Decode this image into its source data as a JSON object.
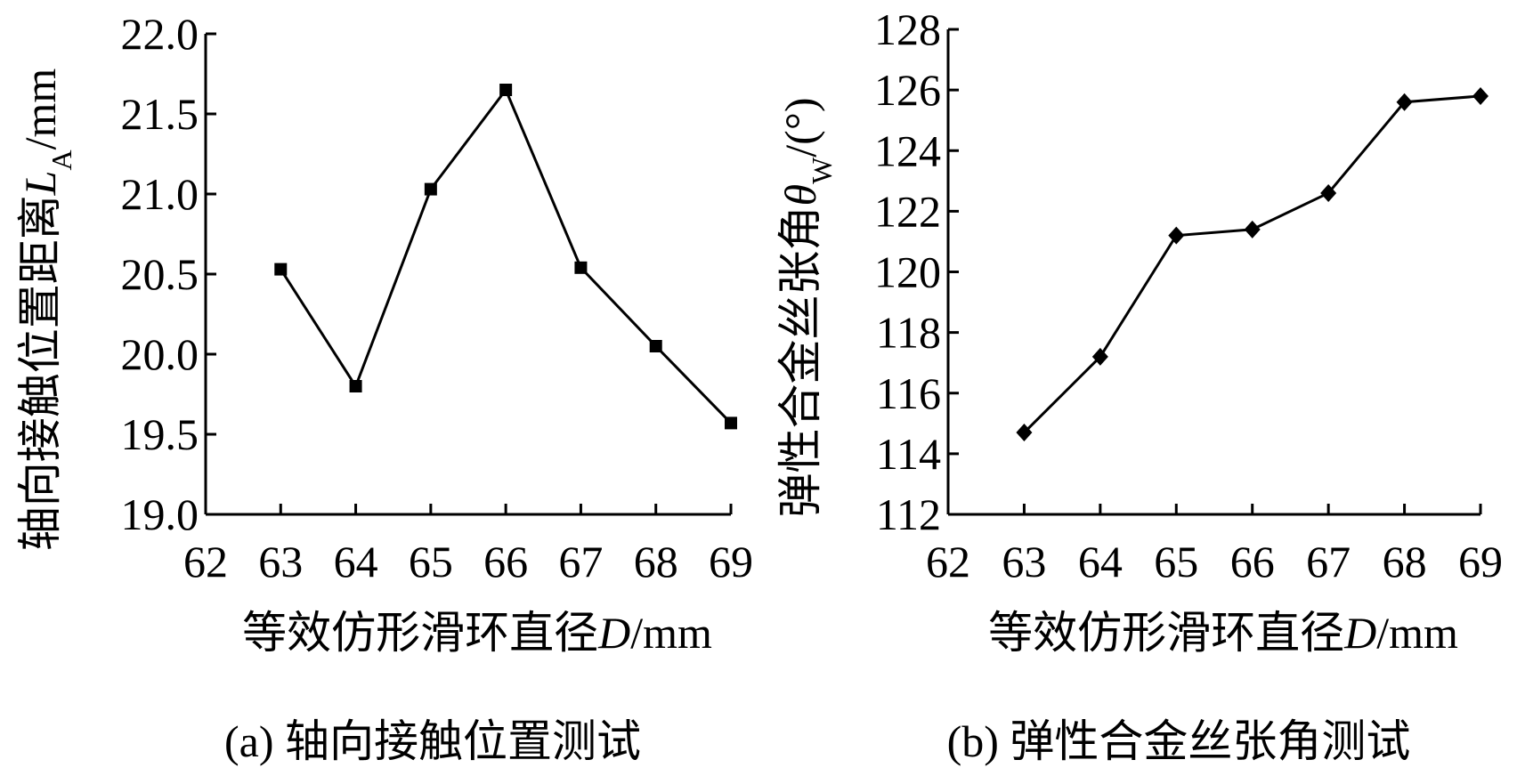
{
  "chart_data": [
    {
      "type": "line",
      "caption": "(a) 轴向接触位置测试",
      "xlabel": [
        "等效仿形滑环直径",
        "D",
        "/mm"
      ],
      "ylabel": [
        "轴向接触位置距离",
        "L",
        "A",
        "/mm"
      ],
      "x": [
        63,
        64,
        65,
        66,
        67,
        68,
        69
      ],
      "series": [
        {
          "color": "#000000",
          "marker": "square",
          "values": [
            20.53,
            19.8,
            21.03,
            21.65,
            20.54,
            20.05,
            19.57
          ]
        }
      ],
      "xlim": [
        62,
        69
      ],
      "xticks": [
        62,
        63,
        64,
        65,
        66,
        67,
        68,
        69
      ],
      "ylim": [
        19,
        22
      ],
      "yticks": [
        {
          "value": 19,
          "label": "19.0"
        },
        {
          "value": 19.5,
          "label": "19.5"
        },
        {
          "value": 20,
          "label": "20.0"
        },
        {
          "value": 20.5,
          "label": "20.5"
        },
        {
          "value": 21,
          "label": "21.0"
        },
        {
          "value": 21.5,
          "label": "21.5"
        },
        {
          "value": 22,
          "label": "22.0"
        }
      ]
    },
    {
      "type": "line",
      "caption": "(b) 弹性合金丝张角测试",
      "xlabel": [
        "等效仿形滑环直径",
        "D",
        "/mm"
      ],
      "ylabel": [
        "弹性合金丝张角",
        "θ",
        "W",
        "/(°)"
      ],
      "x": [
        63,
        64,
        65,
        66,
        67,
        68,
        69
      ],
      "series": [
        {
          "color": "#000000",
          "marker": "diamond",
          "values": [
            114.7,
            117.2,
            121.2,
            121.4,
            122.6,
            125.6,
            125.8
          ]
        }
      ],
      "xlim": [
        62,
        69
      ],
      "xticks": [
        62,
        63,
        64,
        65,
        66,
        67,
        68,
        69
      ],
      "ylim": [
        112,
        128
      ],
      "yticks": [
        112,
        114,
        116,
        118,
        120,
        122,
        124,
        126,
        128
      ]
    }
  ]
}
